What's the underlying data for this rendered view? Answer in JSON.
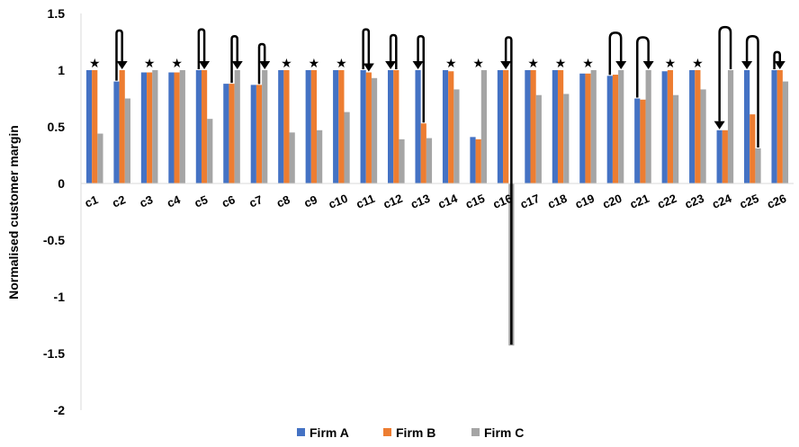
{
  "chart_data": {
    "type": "bar",
    "ylabel": "Normalised customer margin",
    "ylim": [
      -2,
      1.5
    ],
    "yticks": [
      "1.5",
      "1",
      "0.5",
      "0",
      "-0.5",
      "-1",
      "-1.5",
      "-2"
    ],
    "ytick_values": [
      1.5,
      1,
      0.5,
      0,
      -0.5,
      -1,
      -1.5,
      -2
    ],
    "categories": [
      "c1",
      "c2",
      "c3",
      "c4",
      "c5",
      "c6",
      "c7",
      "c8",
      "c9",
      "c10",
      "c11",
      "c12",
      "c13",
      "c14",
      "c15",
      "c16",
      "c17",
      "c18",
      "c19",
      "c20",
      "c21",
      "c22",
      "c23",
      "c24",
      "c25",
      "c26"
    ],
    "series": [
      {
        "name": "Firm A",
        "color": "#4472C4",
        "values": [
          1.0,
          0.9,
          0.98,
          0.98,
          1.0,
          0.88,
          0.87,
          1.0,
          1.0,
          1.0,
          1.0,
          1.0,
          1.0,
          1.0,
          0.41,
          1.0,
          1.0,
          1.0,
          0.97,
          0.95,
          0.75,
          0.99,
          1.0,
          0.47,
          1.0,
          1.0
        ]
      },
      {
        "name": "Firm B",
        "color": "#ED7D31",
        "values": [
          1.0,
          1.0,
          0.98,
          0.98,
          1.0,
          0.88,
          0.87,
          1.0,
          1.0,
          1.0,
          0.98,
          1.0,
          0.53,
          0.99,
          0.39,
          1.0,
          1.0,
          1.0,
          0.97,
          0.96,
          0.74,
          1.0,
          1.0,
          0.47,
          0.61,
          1.0
        ]
      },
      {
        "name": "Firm C",
        "color": "#A5A5A5",
        "values": [
          0.44,
          0.75,
          1.0,
          1.0,
          0.57,
          1.0,
          1.0,
          0.45,
          0.47,
          0.63,
          0.93,
          0.39,
          0.4,
          0.83,
          1.0,
          -1.43,
          0.78,
          0.79,
          1.0,
          1.0,
          1.0,
          0.78,
          0.83,
          1.0,
          0.31,
          0.9
        ]
      }
    ],
    "stars": [
      "c1",
      "c3",
      "c4",
      "c8",
      "c9",
      "c10",
      "c14",
      "c15",
      "c17",
      "c18",
      "c19",
      "c22",
      "c23"
    ],
    "arrows": [
      {
        "category": "c2",
        "from_series": 0,
        "to_series": 1,
        "height": 1.35
      },
      {
        "category": "c5",
        "from_series": 0,
        "to_series": 1,
        "height": 1.36
      },
      {
        "category": "c6",
        "from_series": 1,
        "to_series": 2,
        "height": 1.3
      },
      {
        "category": "c7",
        "from_series": 1,
        "to_series": 2,
        "height": 1.23
      },
      {
        "category": "c11",
        "from_series": 0,
        "to_series": 1,
        "height": 1.36
      },
      {
        "category": "c12",
        "from_series": 1,
        "to_series": 0,
        "height": 1.31
      },
      {
        "category": "c13",
        "from_series": 1,
        "to_series": 0,
        "height": 1.3
      },
      {
        "category": "c16",
        "from_series": 2,
        "to_series": 1,
        "height": 1.29
      },
      {
        "category": "c20",
        "from_series": 0,
        "to_series": 2,
        "height": 1.33
      },
      {
        "category": "c21",
        "from_series": 0,
        "to_series": 2,
        "height": 1.29
      },
      {
        "category": "c24",
        "from_series": 2,
        "to_series": 0,
        "height": 1.38
      },
      {
        "category": "c25",
        "from_series": 2,
        "to_series": 0,
        "height": 1.3
      },
      {
        "category": "c26",
        "from_series": 0,
        "to_series": 1,
        "height": 1.16
      }
    ],
    "legend_position": "bottom",
    "grid": false
  }
}
